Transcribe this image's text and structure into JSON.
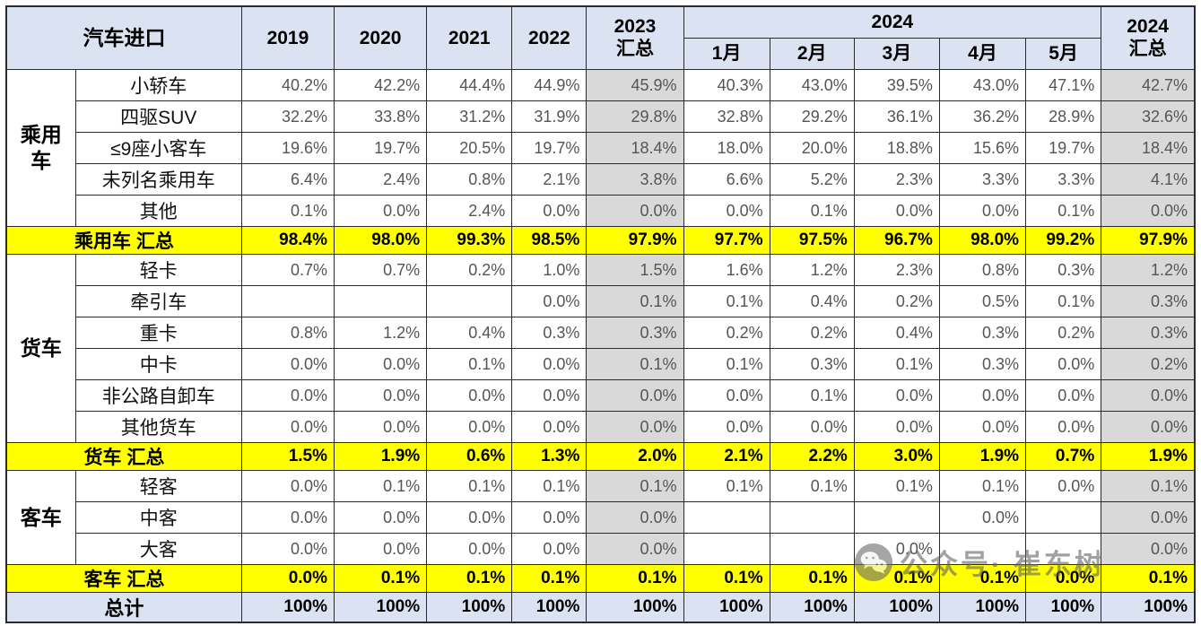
{
  "colors": {
    "header_bg": "#dbe2f1",
    "summary_col_bg": "#d9d9d9",
    "highlight_row_bg": "#ffff00",
    "grand_total_row_bg": "#dbe2f1",
    "grid_line": "#2b2b2b"
  },
  "watermark": {
    "icon": "wechat-icon",
    "text": "公众号· 崔东树"
  },
  "chart_data": {
    "type": "table",
    "title": "汽车进口",
    "header": {
      "title": "汽车进口",
      "years": [
        "2019",
        "2020",
        "2021",
        "2022"
      ],
      "col_2023_total": {
        "line1": "2023",
        "line2": "汇总"
      },
      "group_2024": "2024",
      "months": [
        "1月",
        "2月",
        "3月",
        "4月",
        "5月"
      ],
      "col_2024_total": {
        "line1": "2024",
        "line2": "汇总"
      }
    },
    "columns": [
      "2019",
      "2020",
      "2021",
      "2022",
      "2023汇总",
      "2024-1月",
      "2024-2月",
      "2024-3月",
      "2024-4月",
      "2024-5月",
      "2024汇总"
    ],
    "summary_column_indexes": [
      4,
      10
    ],
    "groups": [
      {
        "name": "乘用车",
        "rows": [
          {
            "label": "小轿车",
            "values": [
              "40.2%",
              "42.2%",
              "44.4%",
              "44.9%",
              "45.9%",
              "40.3%",
              "43.0%",
              "39.5%",
              "43.0%",
              "47.1%",
              "42.7%"
            ]
          },
          {
            "label": "四驱SUV",
            "values": [
              "32.2%",
              "33.8%",
              "31.2%",
              "31.9%",
              "29.8%",
              "32.8%",
              "29.2%",
              "36.1%",
              "36.2%",
              "28.9%",
              "32.6%"
            ]
          },
          {
            "label": "≤9座小客车",
            "values": [
              "19.6%",
              "19.7%",
              "20.5%",
              "19.7%",
              "18.4%",
              "18.0%",
              "20.0%",
              "18.8%",
              "15.6%",
              "19.7%",
              "18.4%"
            ]
          },
          {
            "label": "未列名乘用车",
            "values": [
              "6.4%",
              "2.4%",
              "0.8%",
              "2.1%",
              "3.8%",
              "6.6%",
              "5.2%",
              "2.3%",
              "3.3%",
              "3.3%",
              "4.1%"
            ]
          },
          {
            "label": "其他",
            "values": [
              "0.1%",
              "0.0%",
              "2.4%",
              "0.0%",
              "0.0%",
              "0.0%",
              "0.1%",
              "0.0%",
              "0.0%",
              "0.1%",
              "0.0%"
            ]
          }
        ],
        "total": {
          "label": "乘用车 汇总",
          "values": [
            "98.4%",
            "98.0%",
            "99.3%",
            "98.5%",
            "97.9%",
            "97.7%",
            "97.5%",
            "96.7%",
            "98.0%",
            "99.2%",
            "97.9%"
          ]
        }
      },
      {
        "name": "货车",
        "rows": [
          {
            "label": "轻卡",
            "values": [
              "0.7%",
              "0.7%",
              "0.2%",
              "1.0%",
              "1.5%",
              "1.6%",
              "1.2%",
              "2.3%",
              "0.8%",
              "0.3%",
              "1.2%"
            ]
          },
          {
            "label": "牵引车",
            "values": [
              "",
              "",
              "",
              "0.0%",
              "0.1%",
              "0.1%",
              "0.4%",
              "0.2%",
              "0.5%",
              "0.1%",
              "0.3%"
            ]
          },
          {
            "label": "重卡",
            "values": [
              "0.8%",
              "1.2%",
              "0.4%",
              "0.3%",
              "0.3%",
              "0.2%",
              "0.2%",
              "0.4%",
              "0.3%",
              "0.2%",
              "0.3%"
            ]
          },
          {
            "label": "中卡",
            "values": [
              "0.0%",
              "0.0%",
              "0.1%",
              "0.0%",
              "0.1%",
              "0.1%",
              "0.3%",
              "0.1%",
              "0.3%",
              "0.0%",
              "0.2%"
            ]
          },
          {
            "label": "非公路自卸车",
            "values": [
              "0.0%",
              "0.0%",
              "0.0%",
              "0.0%",
              "0.0%",
              "0.0%",
              "0.1%",
              "0.0%",
              "0.0%",
              "0.0%",
              "0.0%"
            ]
          },
          {
            "label": "其他货车",
            "values": [
              "0.0%",
              "0.0%",
              "0.0%",
              "0.0%",
              "0.0%",
              "0.0%",
              "0.0%",
              "0.0%",
              "0.0%",
              "0.0%",
              "0.0%"
            ]
          }
        ],
        "total": {
          "label": "货车 汇总",
          "values": [
            "1.5%",
            "1.9%",
            "0.6%",
            "1.3%",
            "2.0%",
            "2.1%",
            "2.2%",
            "3.0%",
            "1.9%",
            "0.7%",
            "1.9%"
          ]
        }
      },
      {
        "name": "客车",
        "rows": [
          {
            "label": "轻客",
            "values": [
              "0.0%",
              "0.1%",
              "0.1%",
              "0.1%",
              "0.1%",
              "0.1%",
              "0.1%",
              "0.1%",
              "0.1%",
              "0.0%",
              "0.1%"
            ]
          },
          {
            "label": "中客",
            "values": [
              "0.0%",
              "0.0%",
              "0.0%",
              "0.0%",
              "0.0%",
              "",
              "",
              "",
              "0.0%",
              "",
              "0.0%"
            ]
          },
          {
            "label": "大客",
            "values": [
              "0.0%",
              "0.0%",
              "0.0%",
              "0.0%",
              "0.0%",
              "",
              "",
              "0.0%",
              "",
              "",
              "0.0%"
            ]
          }
        ],
        "total": {
          "label": "客车 汇总",
          "values": [
            "0.0%",
            "0.1%",
            "0.1%",
            "0.1%",
            "0.1%",
            "0.1%",
            "0.1%",
            "0.1%",
            "0.1%",
            "0.0%",
            "0.1%"
          ]
        }
      }
    ],
    "grand_total": {
      "label": "总计",
      "values": [
        "100%",
        "100%",
        "100%",
        "100%",
        "100%",
        "100%",
        "100%",
        "100%",
        "100%",
        "100%",
        "100%"
      ]
    }
  }
}
